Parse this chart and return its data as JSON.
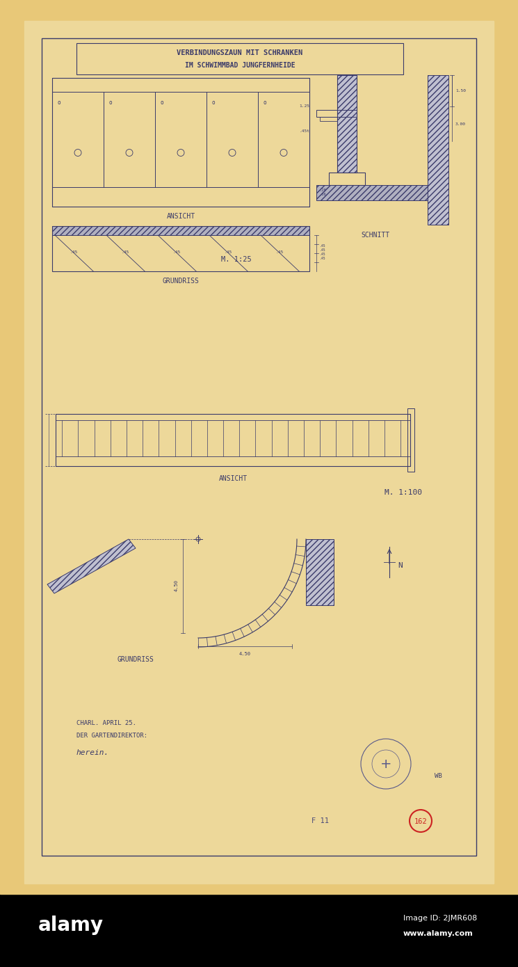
{
  "bg_color": "#e8c878",
  "paper_color": "#edd89a",
  "line_color": "#3a3a6a",
  "title_line1": "VERBINDUNGSZAUN MIT SCHRANKEN",
  "title_line2": "IM SCHWIMMBAD JUNGFERNHEIDE",
  "label_ansicht1": "ANSICHT",
  "label_grundriss1": "GRUNDRISS",
  "label_schnitt": "SCHNITT",
  "label_massstab1": "M. 1:25",
  "label_ansicht2": "ANSICHT",
  "label_massstab2": "M. 1:100",
  "label_grundriss2": "GRUNDRISS",
  "label_charl": "CHARL. APRIL 25.",
  "label_direktor": "DER GARTENDIREKTOR:",
  "label_signature": "herein.",
  "label_wb": "WB",
  "label_f11": "F 11",
  "label_162": "162",
  "alamy_bg": "#000000"
}
